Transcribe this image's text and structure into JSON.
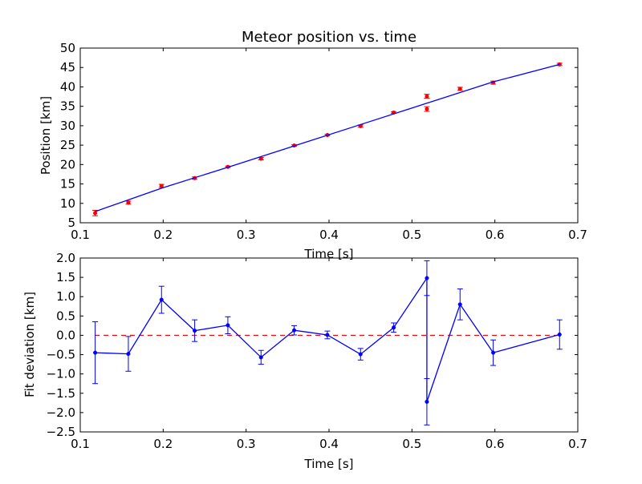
{
  "chart_data": [
    {
      "type": "scatter",
      "title": "Meteor position vs. time",
      "xlabel": "Time [s]",
      "ylabel": "Position [km]",
      "xlim": [
        0.1,
        0.7
      ],
      "ylim": [
        5,
        50
      ],
      "xticks": [
        "0.1",
        "0.2",
        "0.3",
        "0.4",
        "0.5",
        "0.6",
        "0.7"
      ],
      "yticks": [
        "5",
        "10",
        "15",
        "20",
        "25",
        "30",
        "35",
        "40",
        "45",
        "50"
      ],
      "grid": false,
      "series": [
        {
          "kind": "errorbar-points",
          "color": "#ff0000",
          "x": [
            0.118,
            0.158,
            0.198,
            0.238,
            0.278,
            0.318,
            0.358,
            0.398,
            0.438,
            0.478,
            0.518,
            0.518,
            0.558,
            0.598,
            0.678
          ],
          "y": [
            7.5,
            10.2,
            14.5,
            16.5,
            19.4,
            21.5,
            24.9,
            27.6,
            29.9,
            33.4,
            37.6,
            34.3,
            39.5,
            41.1,
            45.8
          ],
          "yerr": [
            0.7,
            0.4,
            0.4,
            0.3,
            0.2,
            0.3,
            0.2,
            0.2,
            0.3,
            0.2,
            0.5,
            0.6,
            0.4,
            0.4,
            0.3
          ]
        },
        {
          "kind": "line",
          "color": "#0000ff",
          "x": [
            0.118,
            0.198,
            0.278,
            0.358,
            0.438,
            0.518,
            0.598,
            0.678
          ],
          "y": [
            7.9,
            13.9,
            19.3,
            24.8,
            30.3,
            35.8,
            41.3,
            45.8
          ]
        }
      ]
    },
    {
      "type": "line",
      "xlabel": "Time [s]",
      "ylabel": "Fit deviation [km]",
      "xlim": [
        0.1,
        0.7
      ],
      "ylim": [
        -2.5,
        2.0
      ],
      "xticks": [
        "0.1",
        "0.2",
        "0.3",
        "0.4",
        "0.5",
        "0.6",
        "0.7"
      ],
      "yticks": [
        "−2.5",
        "−2.0",
        "−1.5",
        "−1.0",
        "−0.5",
        "0.0",
        "0.5",
        "1.0",
        "1.5",
        "2.0"
      ],
      "grid": false,
      "reference_line": {
        "y": 0.0,
        "color": "#ff0000",
        "style": "dashed"
      },
      "series": [
        {
          "kind": "errorbar-line",
          "color": "#0000ff",
          "x": [
            0.118,
            0.158,
            0.198,
            0.238,
            0.278,
            0.318,
            0.358,
            0.398,
            0.438,
            0.478,
            0.518,
            0.518,
            0.558,
            0.598,
            0.678
          ],
          "y": [
            -0.45,
            -0.48,
            0.92,
            0.12,
            0.26,
            -0.57,
            0.13,
            0.01,
            -0.49,
            0.2,
            1.48,
            -1.72,
            0.8,
            -0.45,
            0.02
          ],
          "yerr": [
            0.8,
            0.45,
            0.35,
            0.28,
            0.22,
            0.18,
            0.12,
            0.1,
            0.15,
            0.12,
            0.45,
            0.6,
            0.4,
            0.33,
            0.38
          ]
        }
      ]
    }
  ]
}
